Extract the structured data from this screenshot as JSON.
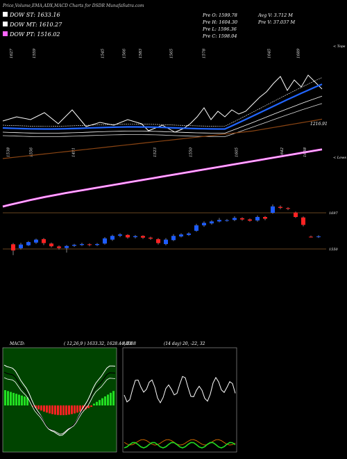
{
  "header": {
    "title": "Price,Volume,EMA,ADX,MACD Charts for DSDR MunafaSutra.com"
  },
  "legend": [
    {
      "label": "DOW ST: 1633.16",
      "color": "#ffffff"
    },
    {
      "label": "DOW MT: 1610.27",
      "color": "#ffffff"
    },
    {
      "label": "DOW PT: 1516.02",
      "color": "#ff66ff"
    }
  ],
  "ohlc": {
    "open": "Pre   O: 1599.78",
    "high": "Pre   H: 1604.30",
    "low": "Pre   L: 1596.36",
    "close": "Pre   C: 1598.04",
    "avg_vol": "Avg V: 3.712  M",
    "prev_vol": "Pre   V: 37.037  M"
  },
  "corner_labels": {
    "top_right": "< Tops",
    "mid_right": "< Lows"
  },
  "top_ticks": [
    {
      "t": "1627",
      "c": 0.03
    },
    {
      "t": "1559",
      "c": 0.1
    },
    {
      "t": "1545",
      "c": 0.31
    },
    {
      "t": "1566",
      "c": 0.375
    },
    {
      "t": "1583",
      "c": 0.425
    },
    {
      "t": "1565",
      "c": 0.52
    },
    {
      "t": "1578",
      "c": 0.62
    },
    {
      "t": "1645",
      "c": 0.82
    },
    {
      "t": "1689",
      "c": 0.91
    }
  ],
  "low_ticks": [
    {
      "t": "1538",
      "c": 0.02
    },
    {
      "t": "1556",
      "c": 0.09
    },
    {
      "t": "1491",
      "c": 0.22
    },
    {
      "t": "1523",
      "c": 0.47
    },
    {
      "t": "1550",
      "c": 0.58
    },
    {
      "t": "1605",
      "c": 0.72
    },
    {
      "t": "1642",
      "c": 0.86
    },
    {
      "t": "1658",
      "c": 0.93
    }
  ],
  "price_levels": [
    {
      "label": "1697",
      "value": 1697
    },
    {
      "label": "1550",
      "value": 1550
    }
  ],
  "line_label": {
    "text": "1216.91",
    "value": 1216.91
  },
  "macd_panel": {
    "label": "MACD:",
    "values": "( 12,26,9 ) 1633.32,  1628.44,  6.88"
  },
  "adx_panel": {
    "label": "ADX",
    "values": "(14  day) 20,  -22,  32"
  },
  "chart_data": {
    "type": "candlestick",
    "title": "Price,Volume,EMA,ADX,MACD Charts for DSDR MunafaSutra.com",
    "candles": [
      {
        "o": 1569,
        "c": 1544,
        "h": 1574,
        "l": 1525
      },
      {
        "o": 1553,
        "c": 1568,
        "h": 1575,
        "l": 1548
      },
      {
        "o": 1565,
        "c": 1578,
        "h": 1582,
        "l": 1562
      },
      {
        "o": 1576,
        "c": 1588,
        "h": 1592,
        "l": 1571
      },
      {
        "o": 1590,
        "c": 1574,
        "h": 1594,
        "l": 1566
      },
      {
        "o": 1572,
        "c": 1561,
        "h": 1576,
        "l": 1556
      },
      {
        "o": 1560,
        "c": 1554,
        "h": 1564,
        "l": 1548
      },
      {
        "o": 1554,
        "c": 1562,
        "h": 1566,
        "l": 1535
      },
      {
        "o": 1563,
        "c": 1567,
        "h": 1571,
        "l": 1558
      },
      {
        "o": 1566,
        "c": 1570,
        "h": 1575,
        "l": 1562
      },
      {
        "o": 1569,
        "c": 1566,
        "h": 1573,
        "l": 1561
      },
      {
        "o": 1566,
        "c": 1570,
        "h": 1574,
        "l": 1562
      },
      {
        "o": 1572,
        "c": 1593,
        "h": 1598,
        "l": 1568
      },
      {
        "o": 1588,
        "c": 1603,
        "h": 1608,
        "l": 1583
      },
      {
        "o": 1604,
        "c": 1609,
        "h": 1614,
        "l": 1598
      },
      {
        "o": 1607,
        "c": 1597,
        "h": 1610,
        "l": 1592
      },
      {
        "o": 1598,
        "c": 1602,
        "h": 1607,
        "l": 1593
      },
      {
        "o": 1603,
        "c": 1596,
        "h": 1606,
        "l": 1591
      },
      {
        "o": 1596,
        "c": 1592,
        "h": 1600,
        "l": 1587
      },
      {
        "o": 1590,
        "c": 1574,
        "h": 1594,
        "l": 1568
      },
      {
        "o": 1570,
        "c": 1588,
        "h": 1594,
        "l": 1565
      },
      {
        "o": 1586,
        "c": 1603,
        "h": 1610,
        "l": 1582
      },
      {
        "o": 1601,
        "c": 1609,
        "h": 1614,
        "l": 1597
      },
      {
        "o": 1607,
        "c": 1613,
        "h": 1618,
        "l": 1603
      },
      {
        "o": 1624,
        "c": 1646,
        "h": 1652,
        "l": 1620
      },
      {
        "o": 1646,
        "c": 1656,
        "h": 1662,
        "l": 1640
      },
      {
        "o": 1654,
        "c": 1662,
        "h": 1667,
        "l": 1649
      },
      {
        "o": 1662,
        "c": 1668,
        "h": 1676,
        "l": 1658
      },
      {
        "o": 1667,
        "c": 1667,
        "h": 1672,
        "l": 1661
      },
      {
        "o": 1668,
        "c": 1676,
        "h": 1683,
        "l": 1663
      },
      {
        "o": 1675,
        "c": 1670,
        "h": 1679,
        "l": 1665
      },
      {
        "o": 1670,
        "c": 1665,
        "h": 1674,
        "l": 1661
      },
      {
        "o": 1666,
        "c": 1680,
        "h": 1686,
        "l": 1661
      },
      {
        "o": 1680,
        "c": 1673,
        "h": 1684,
        "l": 1667
      },
      {
        "o": 1697,
        "c": 1723,
        "h": 1731,
        "l": 1693
      },
      {
        "o": 1721,
        "c": 1717,
        "h": 1727,
        "l": 1712
      },
      {
        "o": 1716,
        "c": 1713,
        "h": 1720,
        "l": 1708
      },
      {
        "o": 1698,
        "c": 1680,
        "h": 1702,
        "l": 1676
      },
      {
        "o": 1678,
        "c": 1648,
        "h": 1682,
        "l": 1642
      },
      {
        "o": 1599.78,
        "c": 1598.04,
        "h": 1604.3,
        "l": 1596.36
      },
      {
        "o": 1599,
        "c": 1601,
        "h": 1606,
        "l": 1595
      }
    ],
    "ema_short": [
      1556,
      1556,
      1559,
      1564,
      1566,
      1565,
      1563,
      1563,
      1563,
      1564,
      1564,
      1565,
      1570,
      1577,
      1584,
      1587,
      1590,
      1591,
      1591,
      1587,
      1587,
      1591,
      1595,
      1599,
      1609,
      1619,
      1628,
      1637,
      1643,
      1649,
      1653,
      1655,
      1660,
      1663,
      1673,
      1681,
      1688,
      1686,
      1677,
      1657,
      1643
    ],
    "ema_mid": [
      1568,
      1567,
      1567,
      1568,
      1569,
      1568,
      1568,
      1567,
      1567,
      1567,
      1567,
      1567,
      1569,
      1571,
      1574,
      1576,
      1578,
      1579,
      1580,
      1579,
      1579,
      1580,
      1582,
      1584,
      1588,
      1593,
      1597,
      1602,
      1606,
      1609,
      1612,
      1614,
      1617,
      1619,
      1624,
      1628,
      1632,
      1633,
      1631,
      1626,
      1621
    ],
    "ema_long": [
      1592,
      1591,
      1591,
      1591,
      1591,
      1590,
      1590,
      1590,
      1589,
      1589,
      1589,
      1589,
      1589,
      1589,
      1589,
      1590,
      1590,
      1590,
      1590,
      1590,
      1590,
      1590,
      1590,
      1591,
      1592,
      1594,
      1595,
      1597,
      1598,
      1600,
      1601,
      1602,
      1604,
      1605,
      1607,
      1609,
      1611,
      1612,
      1612,
      1612,
      1612
    ],
    "upper_line_x": [
      0,
      20,
      40,
      60,
      80,
      100,
      120,
      140,
      160,
      180,
      200,
      210,
      230,
      248,
      260,
      270,
      280,
      290,
      300,
      310,
      320,
      330,
      340,
      350,
      360,
      370,
      380,
      390,
      400,
      410,
      420,
      430,
      440,
      450,
      460
    ],
    "upper_line_y": [
      174,
      168,
      172,
      162,
      178,
      158,
      182,
      176,
      180,
      172,
      178,
      188,
      180,
      190,
      185,
      178,
      168,
      155,
      172,
      160,
      168,
      158,
      164,
      160,
      150,
      140,
      132,
      120,
      110,
      130,
      115,
      125,
      108,
      118,
      128
    ]
  }
}
